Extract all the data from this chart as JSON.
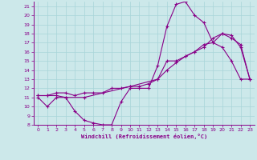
{
  "xlabel": "Windchill (Refroidissement éolien,°C)",
  "xlim": [
    -0.5,
    23.5
  ],
  "ylim": [
    8,
    21.5
  ],
  "yticks": [
    8,
    9,
    10,
    11,
    12,
    13,
    14,
    15,
    16,
    17,
    18,
    19,
    20,
    21
  ],
  "xticks": [
    0,
    1,
    2,
    3,
    4,
    5,
    6,
    7,
    8,
    9,
    10,
    11,
    12,
    13,
    14,
    15,
    16,
    17,
    18,
    19,
    20,
    21,
    22,
    23
  ],
  "background_color": "#cce8ea",
  "grid_color": "#a8d4d8",
  "line_color": "#880088",
  "line1_x": [
    0,
    1,
    2,
    3,
    4,
    5,
    6,
    7,
    8,
    9,
    10,
    11,
    12,
    13,
    14,
    15,
    16,
    17,
    18,
    19,
    20,
    21,
    22,
    23
  ],
  "line1_y": [
    11.0,
    10.0,
    11.0,
    11.0,
    9.5,
    8.5,
    8.2,
    8.0,
    8.0,
    10.5,
    12.0,
    12.0,
    12.0,
    14.5,
    18.8,
    21.2,
    21.5,
    20.0,
    19.2,
    17.0,
    16.5,
    15.0,
    13.0,
    13.0
  ],
  "line2_x": [
    0,
    1,
    2,
    3,
    4,
    5,
    6,
    7,
    8,
    9,
    10,
    11,
    12,
    13,
    14,
    15,
    16,
    17,
    18,
    19,
    20,
    21,
    22,
    23
  ],
  "line2_y": [
    11.2,
    11.2,
    11.5,
    11.5,
    11.2,
    11.5,
    11.5,
    11.5,
    12.0,
    12.0,
    12.2,
    12.2,
    12.5,
    13.0,
    14.0,
    14.8,
    15.5,
    16.0,
    16.8,
    17.0,
    18.0,
    17.5,
    16.8,
    13.0
  ],
  "line3_x": [
    0,
    1,
    2,
    3,
    5,
    10,
    13,
    14,
    15,
    16,
    17,
    18,
    19,
    20,
    21,
    22,
    23
  ],
  "line3_y": [
    11.2,
    11.2,
    11.2,
    11.0,
    11.0,
    12.2,
    13.0,
    15.0,
    15.0,
    15.5,
    16.0,
    16.5,
    17.5,
    18.0,
    17.8,
    16.5,
    13.0
  ]
}
